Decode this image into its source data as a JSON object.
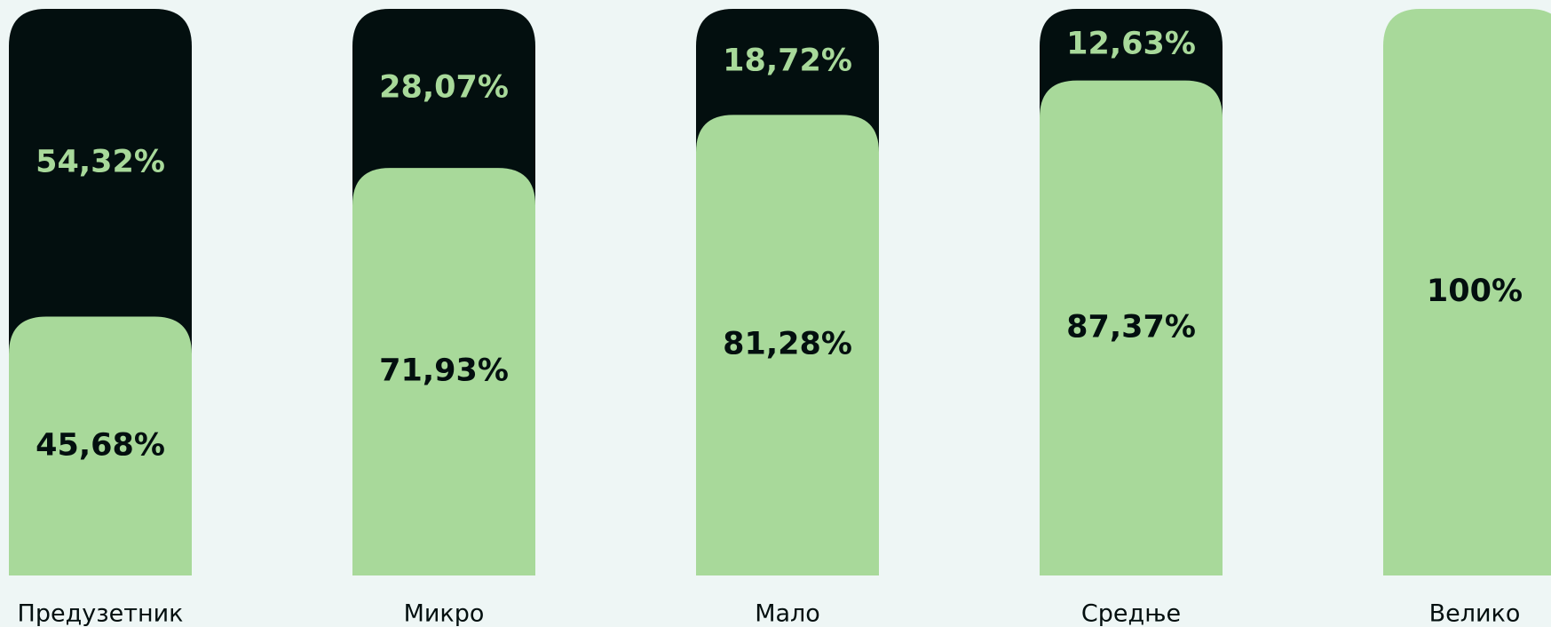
{
  "chart_data": {
    "type": "stacked_bar",
    "categories": [
      "Предузетник",
      "Микро",
      "Мало",
      "Средње",
      "Велико"
    ],
    "series": [
      {
        "color": "#a8d99a",
        "values": [
          45.68,
          71.93,
          81.28,
          87.37,
          100
        ],
        "value_labels": [
          "45,68%",
          "71,93%",
          "81,28%",
          "87,37%",
          "100%"
        ],
        "label_color": "#030f0f"
      },
      {
        "color": "#030f0f",
        "values": [
          54.32,
          28.07,
          18.72,
          12.63,
          0
        ],
        "value_labels": [
          "54,32%",
          "28,07%",
          "18,72%",
          "12,63%",
          null
        ],
        "label_color": "#a8d99a"
      }
    ],
    "ylim": [
      0,
      100
    ]
  }
}
